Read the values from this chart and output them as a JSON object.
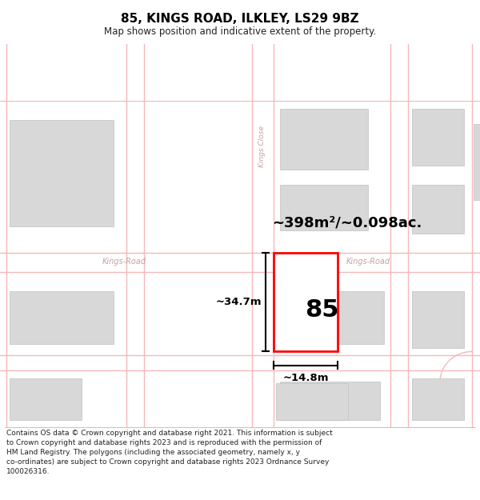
{
  "title": "85, KINGS ROAD, ILKLEY, LS29 9BZ",
  "subtitle": "Map shows position and indicative extent of the property.",
  "footer": "Contains OS data © Crown copyright and database right 2021. This information is subject to Crown copyright and database rights 2023 and is reproduced with the permission of HM Land Registry. The polygons (including the associated geometry, namely x, y co-ordinates) are subject to Crown copyright and database rights 2023 Ordnance Survey 100026316.",
  "area_text": "~398m²/~0.098ac.",
  "number_text": "85",
  "width_label": "~14.8m",
  "height_label": "~34.7m",
  "road_color": "#f5b8b8",
  "building_color": "#d8d8d8",
  "road_label_color": "#c8a0a0",
  "highlight_color": "#ff0000",
  "map_bg": "#ffffff",
  "title_fontsize": 11,
  "subtitle_fontsize": 8.5,
  "footer_fontsize": 6.5
}
